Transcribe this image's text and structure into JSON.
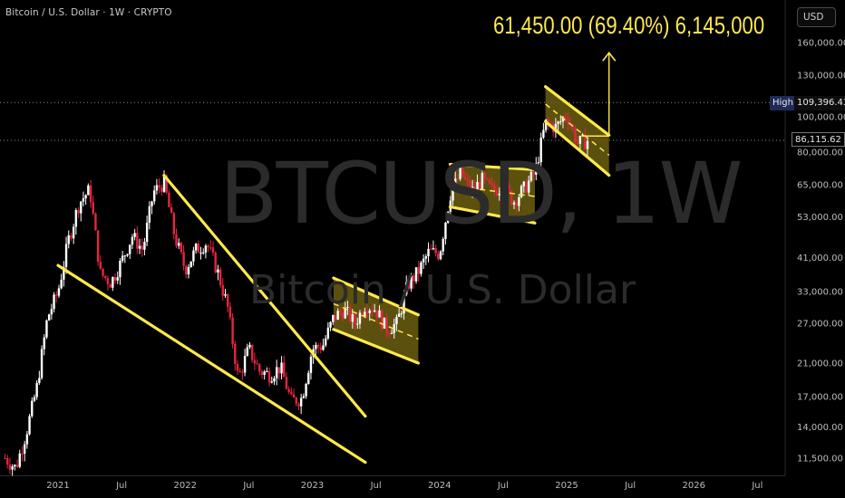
{
  "header": {
    "symbol_title": "Bitcoin / U.S. Dollar · 1W · CRYPTO"
  },
  "currency_button": "USD",
  "watermark": {
    "ticker": "BTCUSD, 1W",
    "name": "Bitcoin / U.S. Dollar"
  },
  "measure_label": "61,450.00 (69.40%) 6,145,000",
  "high_marker": {
    "label": "High",
    "value": "109,396.43"
  },
  "current_price": "86,115.62",
  "colors": {
    "background": "#000000",
    "up_candle": "#ffffff",
    "down_candle": "#e5263e",
    "trendline": "#ffe94d",
    "channel_fill": "#6b5e10"
  },
  "chart_data": {
    "type": "candlestick",
    "title": "",
    "xlabel": "",
    "ylabel": "",
    "y_scale": "log",
    "x_range": [
      "2020-08",
      "2026-09"
    ],
    "y_range": [
      10500,
      170000
    ],
    "y_ticks": [
      "160,000.00",
      "130,000.00",
      "100,000.00",
      "80,000.00",
      "65,000.00",
      "53,000.00",
      "41,000.00",
      "33,000.00",
      "27,000.00",
      "21,000.00",
      "17,000.00",
      "14,000.00",
      "11,500.00"
    ],
    "y_tick_values": [
      160000,
      130000,
      100000,
      80000,
      65000,
      53000,
      41000,
      33000,
      27000,
      21000,
      17000,
      14000,
      11500
    ],
    "x_ticks": [
      "2021",
      "Jul",
      "2022",
      "Jul",
      "2023",
      "Jul",
      "2024",
      "Jul",
      "2025",
      "Jul",
      "2026",
      "Jul"
    ],
    "x_tick_dates": [
      "2021-01",
      "2021-07",
      "2022-01",
      "2022-07",
      "2023-01",
      "2023-07",
      "2024-01",
      "2024-07",
      "2025-01",
      "2025-07",
      "2026-01",
      "2026-07"
    ],
    "price_path": [
      [
        "2020-08",
        11500
      ],
      [
        "2020-09",
        10800
      ],
      [
        "2020-10",
        13500
      ],
      [
        "2020-11",
        18000
      ],
      [
        "2020-12",
        28000
      ],
      [
        "2021-01",
        33000
      ],
      [
        "2021-02",
        46000
      ],
      [
        "2021-03",
        58000
      ],
      [
        "2021-04",
        63000
      ],
      [
        "2021-05",
        37000
      ],
      [
        "2021-06",
        35000
      ],
      [
        "2021-07",
        40000
      ],
      [
        "2021-08",
        47000
      ],
      [
        "2021-09",
        43000
      ],
      [
        "2021-10",
        62000
      ],
      [
        "2021-11",
        66000
      ],
      [
        "2021-12",
        47000
      ],
      [
        "2022-01",
        38000
      ],
      [
        "2022-02",
        43000
      ],
      [
        "2022-03",
        45000
      ],
      [
        "2022-04",
        38000
      ],
      [
        "2022-05",
        30000
      ],
      [
        "2022-06",
        19000
      ],
      [
        "2022-07",
        23000
      ],
      [
        "2022-08",
        20000
      ],
      [
        "2022-09",
        19500
      ],
      [
        "2022-10",
        20500
      ],
      [
        "2022-11",
        16500
      ],
      [
        "2022-12",
        16800
      ],
      [
        "2023-01",
        23000
      ],
      [
        "2023-02",
        23500
      ],
      [
        "2023-03",
        28000
      ],
      [
        "2023-04",
        29500
      ],
      [
        "2023-05",
        27000
      ],
      [
        "2023-06",
        30500
      ],
      [
        "2023-07",
        29500
      ],
      [
        "2023-08",
        26000
      ],
      [
        "2023-09",
        27000
      ],
      [
        "2023-10",
        34500
      ],
      [
        "2023-11",
        37500
      ],
      [
        "2023-12",
        42500
      ],
      [
        "2024-01",
        42000
      ],
      [
        "2024-02",
        61000
      ],
      [
        "2024-03",
        70000
      ],
      [
        "2024-04",
        62000
      ],
      [
        "2024-05",
        67000
      ],
      [
        "2024-06",
        62500
      ],
      [
        "2024-07",
        64500
      ],
      [
        "2024-08",
        58500
      ],
      [
        "2024-09",
        63500
      ],
      [
        "2024-10",
        70000
      ],
      [
        "2024-11",
        96000
      ],
      [
        "2024-12",
        93500
      ],
      [
        "2025-01",
        102000
      ],
      [
        "2025-02",
        84500
      ],
      [
        "2025-03",
        86100
      ]
    ],
    "trendlines": [
      {
        "name": "",
        "start": [
          "2021-01",
          39000
        ],
        "end": [
          "2023-06",
          11200
        ]
      },
      {
        "name": "",
        "start": [
          "2021-11",
          69000
        ],
        "end": [
          "2023-06",
          15000
        ]
      }
    ],
    "channels": [
      {
        "name": "",
        "upper": [
          [
            "2023-03",
            36000
          ],
          [
            "2023-11",
            28500
          ]
        ],
        "lower": [
          [
            "2023-03",
            26000
          ],
          [
            "2023-11",
            21000
          ]
        ]
      },
      {
        "name": "",
        "upper": [
          [
            "2024-02",
            74000
          ],
          [
            "2024-10",
            71500
          ]
        ],
        "lower": [
          [
            "2024-02",
            56500
          ],
          [
            "2024-10",
            51000
          ]
        ]
      },
      {
        "name": "",
        "upper": [
          [
            "2024-11",
            121000
          ],
          [
            "2025-05",
            89000
          ]
        ],
        "lower": [
          [
            "2024-11",
            97000
          ],
          [
            "2025-05",
            69000
          ]
        ]
      }
    ],
    "projection": {
      "from_price": 88500,
      "to_price": 150000,
      "date": "2025-05"
    },
    "horizontal_levels": [
      109396.43,
      86115.62
    ]
  }
}
